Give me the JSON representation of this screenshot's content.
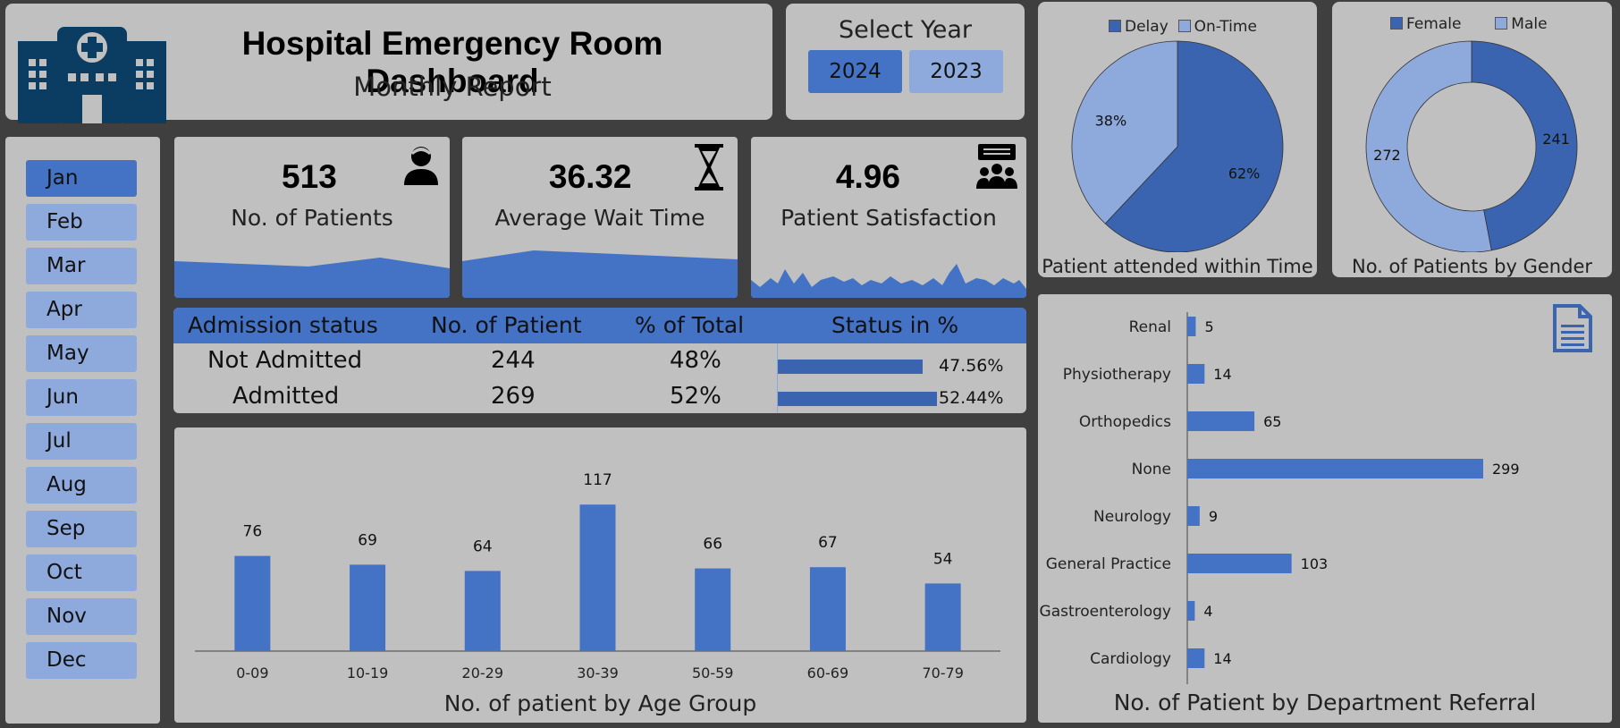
{
  "header": {
    "title": "Hospital Emergency Room Dashboard",
    "subtitle": "Monthly Report"
  },
  "year_selector": {
    "label": "Select Year",
    "years": [
      "2024",
      "2023"
    ],
    "selected": "2024"
  },
  "months": [
    "Jan",
    "Feb",
    "Mar",
    "Apr",
    "May",
    "Jun",
    "Jul",
    "Aug",
    "Sep",
    "Oct",
    "Nov",
    "Dec"
  ],
  "selected_month": "Jan",
  "kpis": [
    {
      "value": "513",
      "label": "No. of Patients",
      "icon": "patient-icon"
    },
    {
      "value": "36.32",
      "label": "Average Wait Time",
      "icon": "hourglass-icon"
    },
    {
      "value": "4.96",
      "label": "Patient Satisfaction",
      "icon": "audience-icon"
    }
  ],
  "admission_table": {
    "headers": [
      "Admission status",
      "No. of Patient",
      "% of Total",
      "Status in %"
    ],
    "rows": [
      {
        "status": "Not Admitted",
        "count": "244",
        "pct": "48%",
        "pct_label": "47.56%",
        "pct_value": 47.56
      },
      {
        "status": "Admitted",
        "count": "269",
        "pct": "52%",
        "pct_label": "52.44%",
        "pct_value": 52.44
      }
    ]
  },
  "colors": {
    "primary": "#4472c4",
    "dark": "#3a63b0",
    "light": "#8ea9db",
    "panel": "#c0c0c0",
    "background": "#3f3f3f",
    "icon_navy": "#0b3d63"
  },
  "chart_data": [
    {
      "type": "bar",
      "title": "No. of patient by Age Group",
      "categories": [
        "0-09",
        "10-19",
        "20-29",
        "30-39",
        "50-59",
        "60-69",
        "70-79"
      ],
      "values": [
        76,
        69,
        64,
        117,
        66,
        67,
        54
      ],
      "ylim": [
        0,
        140
      ]
    },
    {
      "type": "pie",
      "title": "Patient attended within Time",
      "labels": [
        "Delay",
        "On-Time"
      ],
      "values": [
        62,
        38
      ],
      "value_labels": [
        "62%",
        "38%"
      ],
      "legend": "top"
    },
    {
      "type": "pie",
      "title": "No. of Patients by Gender",
      "labels": [
        "Female",
        "Male"
      ],
      "values": [
        241,
        272
      ],
      "value_labels": [
        "241",
        "272"
      ],
      "donut": true,
      "legend": "top"
    },
    {
      "type": "bar",
      "orientation": "horizontal",
      "title": "No. of Patient by Department Referral",
      "categories": [
        "Renal",
        "Physiotherapy",
        "Orthopedics",
        "None",
        "Neurology",
        "General Practice",
        "Gastroenterology",
        "Cardiology"
      ],
      "values": [
        5,
        14,
        65,
        299,
        9,
        103,
        4,
        14
      ],
      "xlim": [
        0,
        299
      ]
    }
  ]
}
